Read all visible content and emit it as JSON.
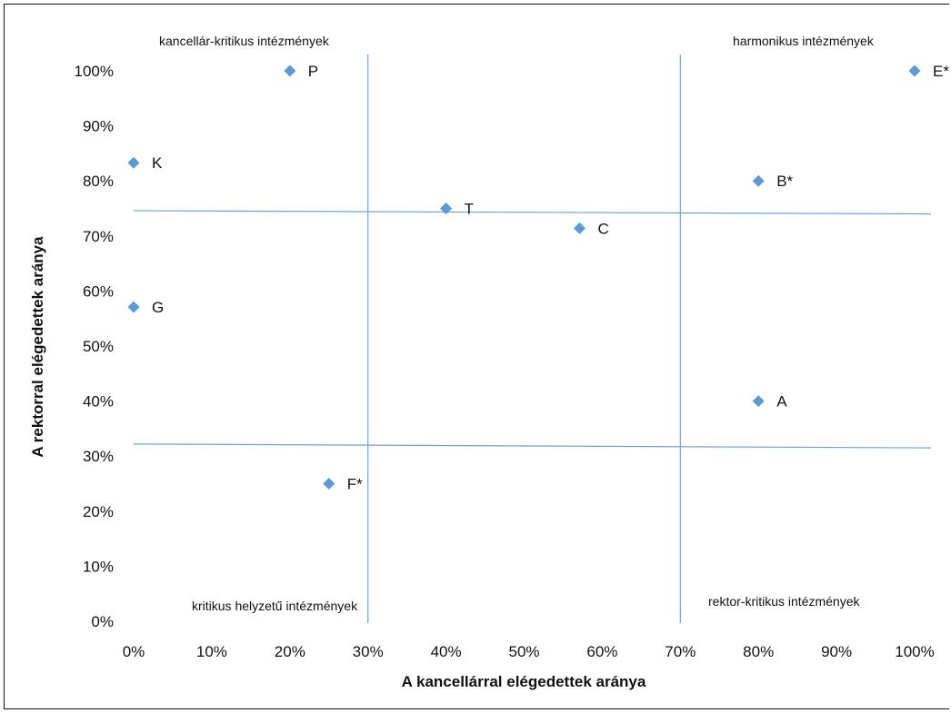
{
  "chart_data": {
    "type": "scatter",
    "xlabel": "A kancellárral elégedettek aránya",
    "ylabel": "A rektorral elégedettek aránya",
    "xlim": [
      0,
      1
    ],
    "ylim": [
      0,
      1
    ],
    "x_ticks": [
      "0%",
      "10%",
      "20%",
      "30%",
      "40%",
      "50%",
      "60%",
      "70%",
      "80%",
      "90%",
      "100%"
    ],
    "y_ticks": [
      "0%",
      "10%",
      "20%",
      "30%",
      "40%",
      "50%",
      "60%",
      "70%",
      "80%",
      "90%",
      "100%"
    ],
    "grid": false,
    "marker_color": "#5b9bd5",
    "line_color": "#6fa1d4",
    "points": [
      {
        "label": "P",
        "x": 0.2,
        "y": 1.0
      },
      {
        "label": "E*",
        "x": 1.0,
        "y": 1.0
      },
      {
        "label": "K",
        "x": 0.0,
        "y": 0.833
      },
      {
        "label": "B*",
        "x": 0.8,
        "y": 0.8
      },
      {
        "label": "T",
        "x": 0.4,
        "y": 0.75
      },
      {
        "label": "C",
        "x": 0.571,
        "y": 0.714
      },
      {
        "label": "G",
        "x": 0.0,
        "y": 0.571
      },
      {
        "label": "A",
        "x": 0.8,
        "y": 0.4
      },
      {
        "label": "F*",
        "x": 0.25,
        "y": 0.25
      }
    ],
    "reference_lines": [
      {
        "orientation": "vertical",
        "x": 0.3
      },
      {
        "orientation": "vertical",
        "x": 0.7
      },
      {
        "orientation": "horizontal",
        "y_start": 0.746,
        "y_end": 0.74
      },
      {
        "orientation": "horizontal",
        "y_start": 0.322,
        "y_end": 0.315
      }
    ],
    "quadrant_labels": {
      "top_left": "kancellár-kritikus intézmények",
      "top_right": "harmonikus intézmények",
      "bottom_left": "kritikus helyzetű intézmények",
      "bottom_right": "rektor-kritikus intézmények"
    }
  }
}
